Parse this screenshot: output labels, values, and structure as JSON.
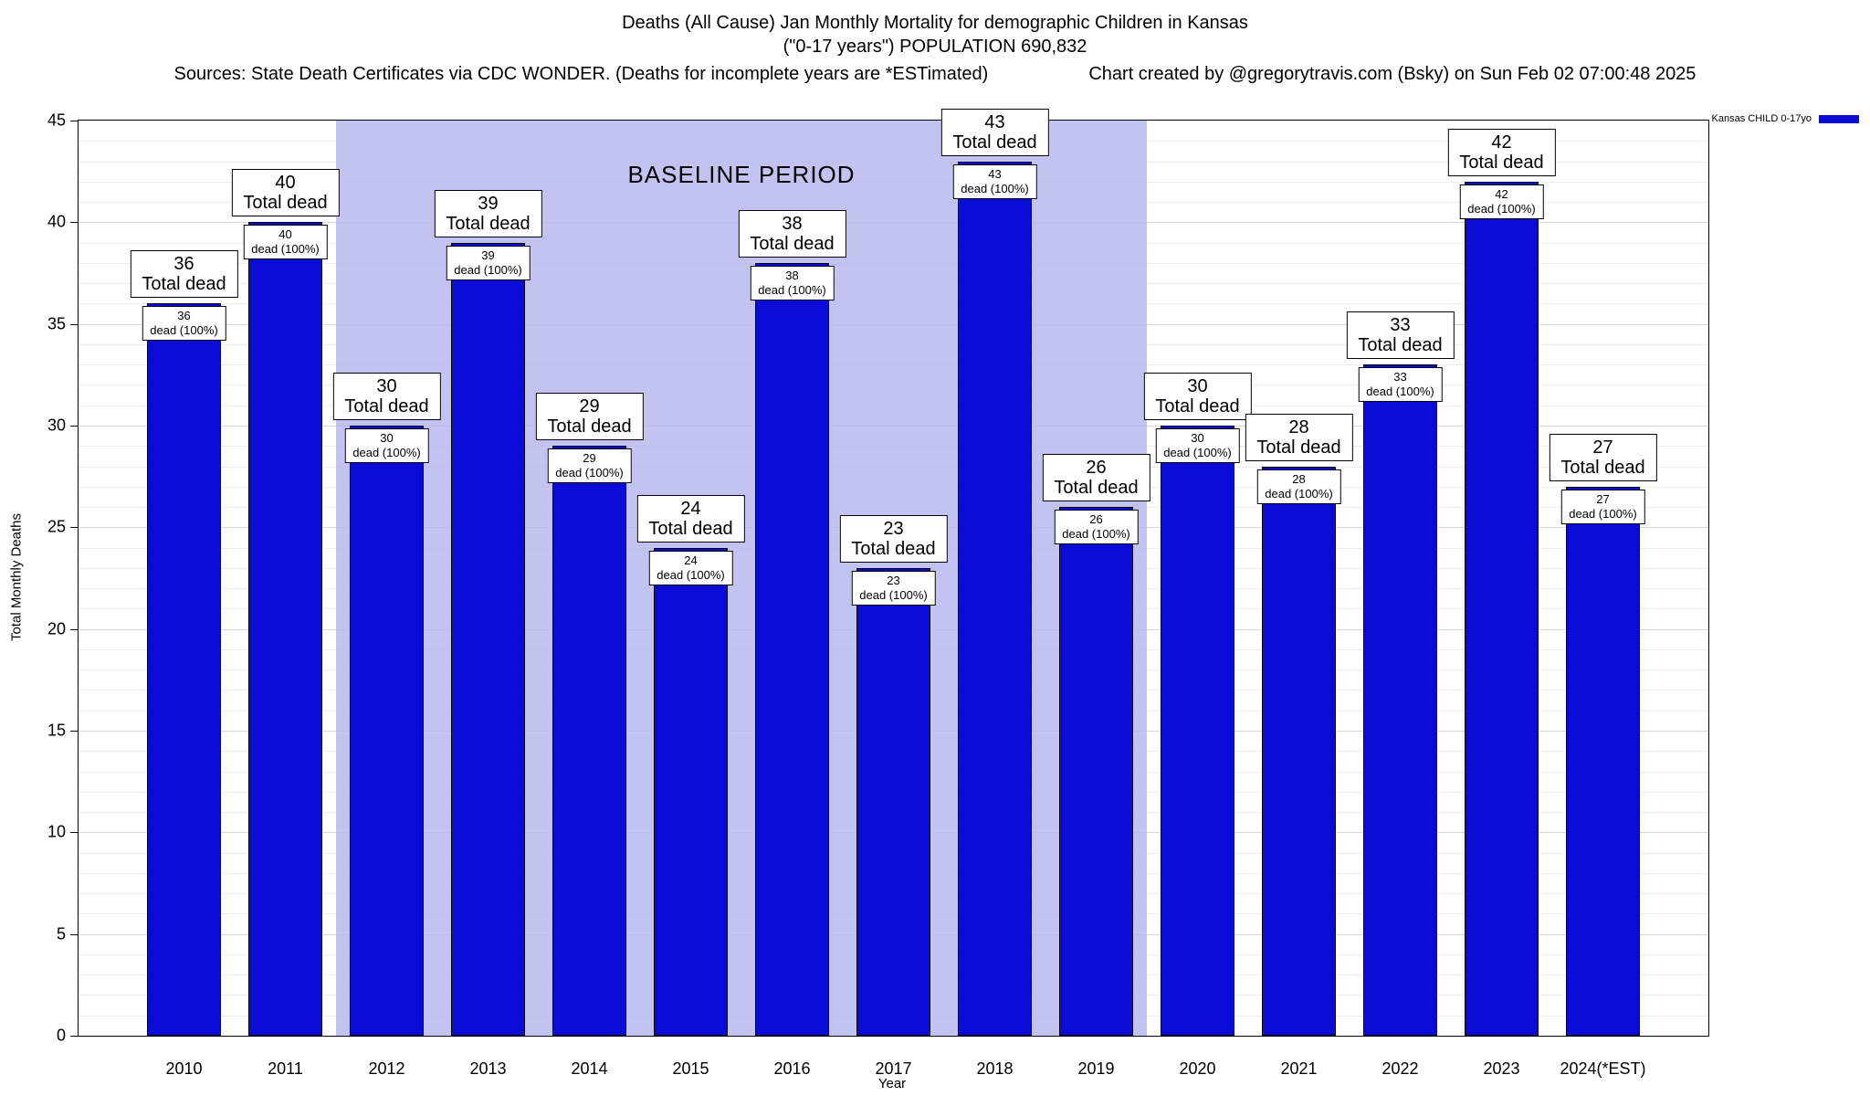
{
  "header": {
    "title": "Deaths (All Cause) Jan Monthly Mortality for demographic Children in Kansas",
    "subtitle": "(\"0-17 years\") POPULATION 690,832",
    "sources": "Sources: State Death Certificates via CDC WONDER. (Deaths for incomplete years are *ESTimated)",
    "credit": "Chart created by @gregorytravis.com (Bsky) on Sun Feb 02 07:00:48 2025"
  },
  "legend": {
    "label": "Kansas CHILD 0-17yo",
    "color": "#0b0bd8"
  },
  "chart_data": {
    "type": "bar",
    "title": "Deaths (All Cause) Jan Monthly Mortality for demographic Children in Kansas",
    "xlabel": "Year",
    "ylabel": "Total Monthly Deaths",
    "ylim": [
      0,
      45
    ],
    "ytick_step": 5,
    "grid": true,
    "categories": [
      "2010",
      "2011",
      "2012",
      "2013",
      "2014",
      "2015",
      "2016",
      "2017",
      "2018",
      "2019",
      "2020",
      "2021",
      "2022",
      "2023",
      "2024(*EST)"
    ],
    "values": [
      36,
      40,
      30,
      39,
      29,
      24,
      38,
      23,
      43,
      26,
      30,
      28,
      33,
      42,
      27
    ],
    "bar_color": "#0b0bd8",
    "bar_label_top_suffix": "Total dead",
    "bar_label_inner_suffix": "dead (100%)",
    "inner_label_percent": "100%",
    "baseline_period": {
      "label": "BASELINE PERIOD",
      "from_category": "2012",
      "to_category": "2019",
      "color": "#c6c6f4"
    }
  }
}
